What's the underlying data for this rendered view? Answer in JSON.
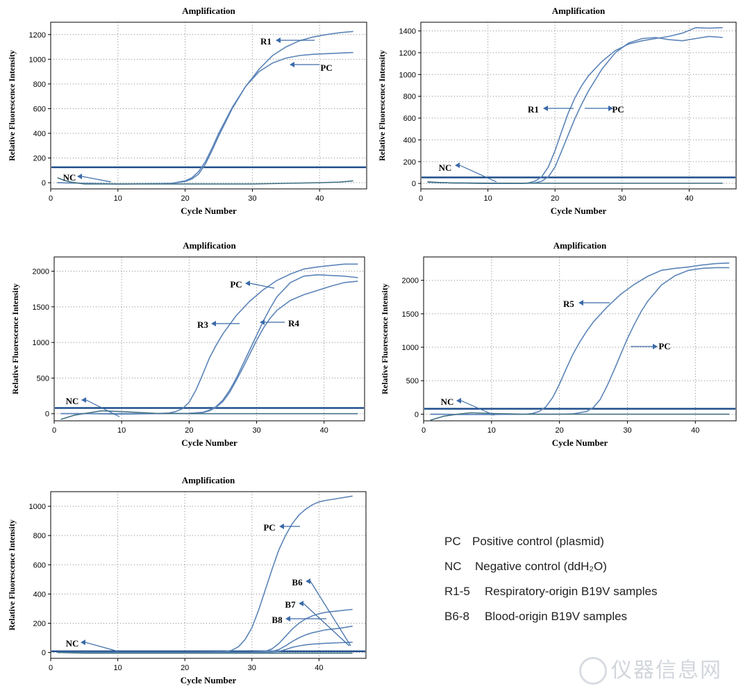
{
  "colors": {
    "curve": "#5b84b8",
    "threshold": "#1f4e8c",
    "axis": "#000000",
    "grid": "#888888",
    "nc_trace": "#1f5a2c",
    "arrow": "#3a6aa8"
  },
  "chart_data": [
    {
      "type": "line",
      "title": "Amplification",
      "xlabel": "Cycle Number",
      "ylabel": "Relative Fluorescence Intensity",
      "xlim": [
        0,
        47
      ],
      "ylim": [
        -50,
        1300
      ],
      "xticks": [
        0,
        10,
        20,
        30,
        40
      ],
      "yticks": [
        0,
        200,
        400,
        600,
        800,
        1000,
        1200
      ],
      "threshold": 125,
      "series": [
        {
          "name": "R1",
          "x": [
            1,
            5,
            10,
            15,
            18,
            20,
            21,
            22,
            23,
            24,
            25,
            27,
            29,
            31,
            33,
            35,
            37,
            39,
            41,
            43,
            45
          ],
          "y": [
            0,
            -5,
            -10,
            -8,
            -5,
            10,
            30,
            70,
            150,
            260,
            380,
            600,
            780,
            920,
            1030,
            1100,
            1150,
            1180,
            1200,
            1215,
            1225
          ]
        },
        {
          "name": "PC",
          "x": [
            1,
            5,
            10,
            15,
            18,
            20,
            21,
            22,
            23,
            24,
            25,
            27,
            29,
            31,
            33,
            35,
            37,
            39,
            41,
            43,
            45
          ],
          "y": [
            0,
            -5,
            -10,
            -8,
            -5,
            15,
            40,
            90,
            170,
            280,
            400,
            610,
            780,
            900,
            970,
            1010,
            1030,
            1040,
            1045,
            1050,
            1055
          ]
        },
        {
          "name": "NC",
          "x": [
            1,
            2,
            3,
            5,
            7,
            9,
            11,
            15,
            20,
            25,
            30,
            35,
            40,
            43,
            45
          ],
          "y": [
            40,
            20,
            5,
            -10,
            -10,
            -10,
            -10,
            -10,
            -10,
            -10,
            -10,
            -5,
            0,
            5,
            15
          ]
        }
      ],
      "annotations": [
        {
          "label": "R1",
          "x": 33.5,
          "y": 1170
        },
        {
          "label": "PC",
          "x": 36,
          "y": 1005
        },
        {
          "label": "NC",
          "x": 3.6,
          "y": 60
        }
      ]
    },
    {
      "type": "line",
      "title": "Amplification",
      "xlabel": "Cycle Number",
      "ylabel": "Relative Fluorescence Intensity",
      "xlim": [
        0,
        47
      ],
      "ylim": [
        -50,
        1480
      ],
      "xticks": [
        0,
        10,
        20,
        30,
        40
      ],
      "yticks": [
        0,
        200,
        400,
        600,
        800,
        1000,
        1200,
        1400
      ],
      "threshold": 55,
      "series": [
        {
          "name": "R1",
          "x": [
            1,
            5,
            10,
            15,
            16,
            17,
            18,
            19,
            20,
            21,
            22,
            23,
            24,
            25,
            27,
            29,
            31,
            33,
            35,
            37,
            39,
            41,
            43,
            45
          ],
          "y": [
            10,
            5,
            0,
            0,
            5,
            20,
            60,
            150,
            300,
            480,
            650,
            790,
            900,
            990,
            1120,
            1220,
            1280,
            1310,
            1330,
            1350,
            1380,
            1430,
            1425,
            1430
          ]
        },
        {
          "name": "PC",
          "x": [
            1,
            5,
            10,
            15,
            17,
            18,
            19,
            20,
            21,
            22,
            23,
            24,
            25,
            27,
            29,
            31,
            33,
            35,
            37,
            39,
            41,
            43,
            45
          ],
          "y": [
            10,
            5,
            0,
            0,
            5,
            20,
            60,
            150,
            300,
            450,
            600,
            730,
            850,
            1050,
            1200,
            1290,
            1330,
            1340,
            1320,
            1310,
            1330,
            1350,
            1340
          ]
        },
        {
          "name": "NC",
          "x": [
            1,
            3,
            5,
            10,
            15,
            20,
            25,
            30,
            35,
            40,
            45
          ],
          "y": [
            15,
            8,
            5,
            3,
            2,
            2,
            2,
            2,
            2,
            2,
            2
          ]
        }
      ],
      "annotations": [
        {
          "label": "R1",
          "x": 17.5,
          "y": 690
        },
        {
          "label": "PC",
          "x": 24.5,
          "y": 690
        },
        {
          "label": "NC",
          "x": 6.1,
          "y": 160
        }
      ]
    },
    {
      "type": "line",
      "title": "Amplification",
      "xlabel": "Cycle Number",
      "ylabel": "Relative Fluorescence Intensity",
      "xlim": [
        0,
        46
      ],
      "ylim": [
        -100,
        2200
      ],
      "xticks": [
        0,
        10,
        20,
        30,
        40
      ],
      "yticks": [
        0,
        500,
        1000,
        1500,
        2000
      ],
      "threshold": 80,
      "series": [
        {
          "name": "PC",
          "x": [
            1,
            5,
            10,
            15,
            17,
            18,
            19,
            20,
            21,
            22,
            23,
            24,
            25,
            27,
            29,
            31,
            33,
            35,
            37,
            39,
            41,
            43,
            45
          ],
          "y": [
            0,
            0,
            -5,
            0,
            10,
            30,
            70,
            160,
            330,
            550,
            780,
            960,
            1120,
            1380,
            1580,
            1740,
            1870,
            1960,
            2030,
            2060,
            2080,
            2100,
            2100
          ]
        },
        {
          "name": "R3",
          "x": [
            1,
            5,
            10,
            15,
            20,
            22,
            23,
            24,
            25,
            26,
            27,
            28,
            29,
            30,
            31,
            32,
            33,
            35,
            37,
            39,
            41,
            43,
            45
          ],
          "y": [
            0,
            0,
            0,
            0,
            5,
            20,
            50,
            100,
            190,
            330,
            500,
            700,
            900,
            1100,
            1300,
            1480,
            1640,
            1840,
            1930,
            1950,
            1940,
            1930,
            1910
          ]
        },
        {
          "name": "R4",
          "x": [
            1,
            5,
            10,
            15,
            20,
            22,
            23,
            24,
            25,
            26,
            27,
            28,
            29,
            30,
            31,
            32,
            33,
            35,
            37,
            39,
            41,
            43,
            45
          ],
          "y": [
            0,
            0,
            0,
            0,
            5,
            15,
            40,
            90,
            170,
            300,
            470,
            650,
            840,
            1030,
            1200,
            1340,
            1450,
            1590,
            1670,
            1730,
            1790,
            1840,
            1860
          ]
        },
        {
          "name": "NC",
          "x": [
            1,
            3,
            5,
            7,
            10,
            15,
            20,
            25,
            30,
            35,
            40,
            45
          ],
          "y": [
            -80,
            -20,
            10,
            40,
            30,
            5,
            0,
            0,
            0,
            0,
            0,
            0
          ]
        }
      ],
      "annotations": [
        {
          "label": "PC",
          "x": 29.5,
          "y": 1860
        },
        {
          "label": "R3",
          "x": 24.6,
          "y": 1250
        },
        {
          "label": "R4",
          "x": 34.5,
          "y": 1280
        },
        {
          "label": "NC",
          "x": 4.3,
          "y": 190
        }
      ]
    },
    {
      "type": "line",
      "title": "Amplification",
      "xlabel": "Cycle Number",
      "ylabel": "Relative Fluorescence Intensity",
      "xlim": [
        0,
        46
      ],
      "ylim": [
        -100,
        2350
      ],
      "xticks": [
        0,
        10,
        20,
        30,
        40
      ],
      "yticks": [
        0,
        500,
        1000,
        1500,
        2000
      ],
      "threshold": 80,
      "series": [
        {
          "name": "R5",
          "x": [
            1,
            5,
            10,
            15,
            16,
            17,
            18,
            19,
            20,
            21,
            22,
            23,
            24,
            25,
            27,
            29,
            31,
            33,
            35,
            37,
            39,
            41,
            43,
            45
          ],
          "y": [
            0,
            -5,
            -5,
            0,
            10,
            40,
            110,
            250,
            450,
            680,
            900,
            1080,
            1240,
            1380,
            1600,
            1790,
            1940,
            2060,
            2150,
            2180,
            2200,
            2230,
            2250,
            2260
          ]
        },
        {
          "name": "PC",
          "x": [
            1,
            5,
            10,
            15,
            20,
            22,
            24,
            25,
            26,
            27,
            28,
            29,
            30,
            31,
            32,
            33,
            35,
            37,
            39,
            41,
            43,
            45
          ],
          "y": [
            0,
            -5,
            -5,
            0,
            0,
            5,
            40,
            100,
            220,
            420,
            650,
            890,
            1130,
            1340,
            1530,
            1690,
            1930,
            2070,
            2150,
            2180,
            2190,
            2190
          ]
        },
        {
          "name": "NC",
          "x": [
            1,
            3,
            5,
            7,
            10,
            15,
            20,
            25,
            30,
            35,
            40,
            45
          ],
          "y": [
            -90,
            -30,
            0,
            20,
            10,
            0,
            0,
            0,
            0,
            0,
            0,
            0
          ]
        }
      ],
      "annotations": [
        {
          "label": "R5",
          "x": 22.2,
          "y": 1690
        },
        {
          "label": "PC",
          "x": 35,
          "y": 1020
        },
        {
          "label": "NC",
          "x": 3.6,
          "y": 190
        }
      ]
    },
    {
      "type": "line",
      "title": "Amplification",
      "xlabel": "Cycle Number",
      "ylabel": "Relative Fluorescence Intensity",
      "xlim": [
        0,
        47
      ],
      "ylim": [
        -40,
        1100
      ],
      "xticks": [
        0,
        10,
        20,
        30,
        40
      ],
      "yticks": [
        0,
        200,
        400,
        600,
        800,
        1000
      ],
      "threshold": 8,
      "series": [
        {
          "name": "PC",
          "x": [
            1,
            10,
            20,
            26,
            27,
            28,
            29,
            30,
            31,
            32,
            33,
            34,
            35,
            36,
            37,
            38,
            39,
            40,
            41,
            43,
            45
          ],
          "y": [
            0,
            0,
            0,
            5,
            15,
            40,
            90,
            170,
            290,
            430,
            570,
            700,
            800,
            880,
            940,
            980,
            1010,
            1030,
            1040,
            1055,
            1070
          ]
        },
        {
          "name": "B6",
          "x": [
            1,
            10,
            20,
            30,
            32,
            33,
            34,
            35,
            36,
            37,
            38,
            39,
            40,
            41,
            43,
            45
          ],
          "y": [
            0,
            0,
            0,
            2,
            8,
            25,
            60,
            110,
            160,
            200,
            230,
            250,
            265,
            275,
            285,
            295
          ]
        },
        {
          "name": "B7",
          "x": [
            1,
            10,
            20,
            30,
            33,
            34,
            35,
            36,
            37,
            38,
            39,
            40,
            41,
            43,
            45
          ],
          "y": [
            0,
            0,
            0,
            2,
            8,
            20,
            45,
            75,
            100,
            120,
            135,
            145,
            155,
            165,
            180
          ]
        },
        {
          "name": "B8",
          "x": [
            1,
            10,
            20,
            30,
            33,
            34,
            35,
            36,
            37,
            38,
            39,
            40,
            41,
            43,
            45
          ],
          "y": [
            0,
            0,
            0,
            1,
            3,
            8,
            20,
            35,
            45,
            52,
            57,
            60,
            63,
            67,
            70
          ]
        },
        {
          "name": "NC",
          "x": [
            1,
            5,
            10,
            20,
            30,
            40,
            45
          ],
          "y": [
            0,
            -5,
            -5,
            -5,
            -5,
            -5,
            -5
          ]
        }
      ],
      "annotations": [
        {
          "label": "PC",
          "x": 33,
          "y": 890
        },
        {
          "label": "B6",
          "x": 36.8,
          "y": 490
        },
        {
          "label": "B7",
          "x": 35.6,
          "y": 340
        },
        {
          "label": "B8",
          "x": 34.7,
          "y": 230
        },
        {
          "label": "NC",
          "x": 3.6,
          "y": 60
        }
      ]
    }
  ],
  "legend": [
    {
      "code": "PC",
      "desc": "Positive control (plasmid)"
    },
    {
      "code": "NC",
      "desc": "Negative control (ddH₂O)"
    },
    {
      "code": "R1-5",
      "desc": "Respiratory-origin B19V samples"
    },
    {
      "code": "B6-8",
      "desc": "Blood-origin B19V samples"
    }
  ],
  "watermark": "仪器信息网"
}
